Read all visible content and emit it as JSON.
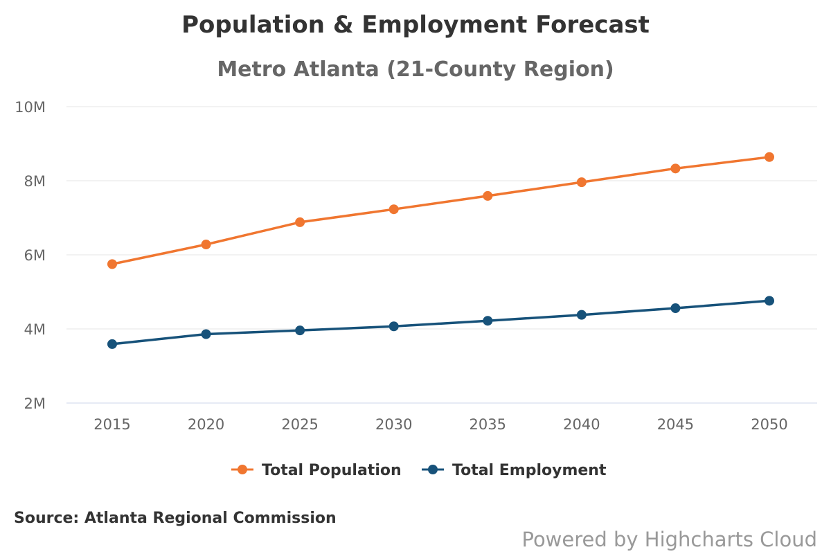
{
  "colors": {
    "population": "#f07630",
    "employment": "#17527a",
    "grid": "#e6e6e6",
    "axis": "#ccd6eb"
  },
  "chart_data": {
    "type": "line",
    "title": "Population & Employment Forecast",
    "subtitle": "Metro Atlanta (21-County Region)",
    "x": [
      2015,
      2020,
      2025,
      2030,
      2035,
      2040,
      2045,
      2050
    ],
    "x_tick_labels": [
      "2015",
      "2020",
      "2025",
      "2030",
      "2035",
      "2040",
      "2045",
      "2050"
    ],
    "y_ticks": [
      2000000,
      4000000,
      6000000,
      8000000,
      10000000
    ],
    "y_tick_labels": [
      "2M",
      "4M",
      "6M",
      "8M",
      "10M"
    ],
    "ylim": [
      2000000,
      10000000
    ],
    "grid": true,
    "legend_position": "bottom-center",
    "series": [
      {
        "name": "Total Population",
        "color_key": "population",
        "values": [
          5750000,
          6280000,
          6880000,
          7230000,
          7590000,
          7960000,
          8330000,
          8640000
        ]
      },
      {
        "name": "Total Employment",
        "color_key": "employment",
        "values": [
          3590000,
          3860000,
          3960000,
          4070000,
          4220000,
          4380000,
          4560000,
          4760000
        ]
      }
    ]
  },
  "credits": {
    "source": "Source: Atlanta Regional Commission",
    "powered_by": "Powered by Highcharts Cloud"
  }
}
